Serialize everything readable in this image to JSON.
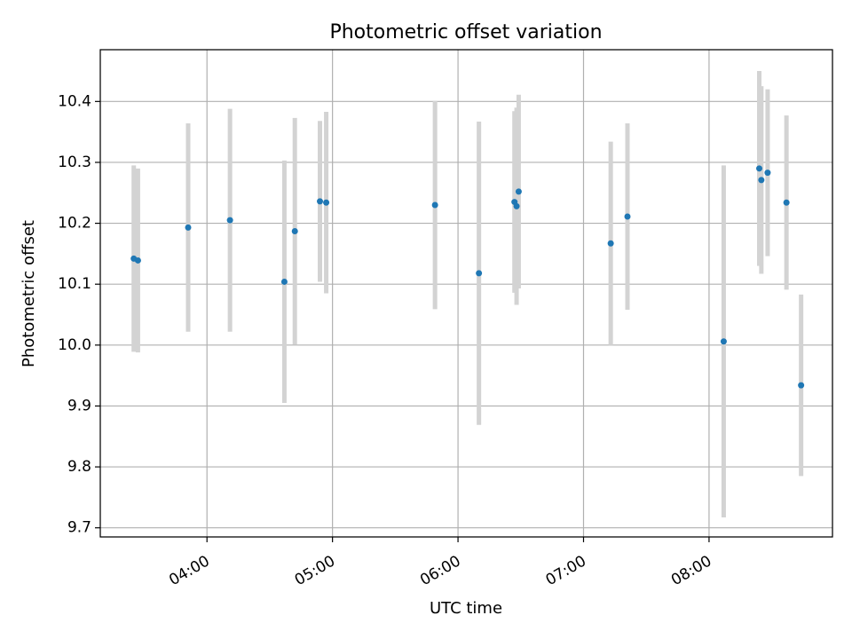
{
  "chart_data": {
    "type": "scatter",
    "title": "Photometric offset variation",
    "xlabel": "UTC time",
    "ylabel": "Photometric offset",
    "x_unit": "time of day (HH:MM UTC)",
    "xlim": [
      "03:09",
      "08:59"
    ],
    "ylim": [
      9.685,
      10.485
    ],
    "x_ticks": [
      "04:00",
      "05:00",
      "06:00",
      "07:00",
      "08:00"
    ],
    "y_ticks": [
      9.7,
      9.8,
      9.9,
      10.0,
      10.1,
      10.2,
      10.3,
      10.4
    ],
    "y_tick_labels": [
      "9.7",
      "9.8",
      "9.9",
      "10.0",
      "10.1",
      "10.2",
      "10.3",
      "10.4"
    ],
    "grid": true,
    "legend": false,
    "colors": {
      "points": "#1f77b4",
      "error_bars": "#d3d3d3",
      "grid": "#b0b0b0"
    },
    "series": [
      {
        "points": [
          {
            "x": "03:25",
            "y": 10.142,
            "yerr": 0.153
          },
          {
            "x": "03:27",
            "y": 10.139,
            "yerr": 0.151
          },
          {
            "x": "03:51",
            "y": 10.193,
            "yerr": 0.171
          },
          {
            "x": "04:11",
            "y": 10.205,
            "yerr": 0.183
          },
          {
            "x": "04:37",
            "y": 10.104,
            "yerr": 0.199
          },
          {
            "x": "04:42",
            "y": 10.187,
            "yerr": 0.186
          },
          {
            "x": "04:54",
            "y": 10.236,
            "yerr": 0.132
          },
          {
            "x": "04:57",
            "y": 10.234,
            "yerr": 0.149
          },
          {
            "x": "05:49",
            "y": 10.23,
            "yerr": 0.171
          },
          {
            "x": "06:10",
            "y": 10.118,
            "yerr": 0.249
          },
          {
            "x": "06:27",
            "y": 10.235,
            "yerr": 0.149
          },
          {
            "x": "06:28",
            "y": 10.228,
            "yerr": 0.162
          },
          {
            "x": "06:29",
            "y": 10.252,
            "yerr": 0.159
          },
          {
            "x": "07:13",
            "y": 10.167,
            "yerr": 0.167
          },
          {
            "x": "07:21",
            "y": 10.211,
            "yerr": 0.153
          },
          {
            "x": "08:07",
            "y": 10.006,
            "yerr": 0.289
          },
          {
            "x": "08:24",
            "y": 10.29,
            "yerr": 0.16
          },
          {
            "x": "08:25",
            "y": 10.271,
            "yerr": 0.154
          },
          {
            "x": "08:28",
            "y": 10.283,
            "yerr": 0.137
          },
          {
            "x": "08:37",
            "y": 10.234,
            "yerr": 0.143
          },
          {
            "x": "08:44",
            "y": 9.934,
            "yerr": 0.149
          }
        ]
      }
    ]
  }
}
